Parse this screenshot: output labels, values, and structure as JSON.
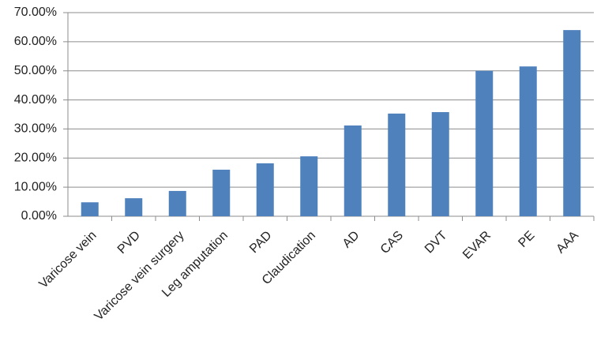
{
  "chart_data": {
    "type": "bar",
    "categories": [
      "Varicose vein",
      "PVD",
      "Varicose vein surgery",
      "Leg amputation",
      "PAD",
      "Claudication",
      "AD",
      "CAS",
      "DVT",
      "EVAR",
      "PE",
      "AAA"
    ],
    "values": [
      4.8,
      6.2,
      8.7,
      16.0,
      18.2,
      20.6,
      31.2,
      35.3,
      35.8,
      50.0,
      51.5,
      64.0
    ],
    "color": "#4f81bd",
    "ylim": [
      0,
      70
    ],
    "yticks": [
      {
        "value": 0,
        "label": "0.00%"
      },
      {
        "value": 10,
        "label": "10.00%"
      },
      {
        "value": 20,
        "label": "20.00%"
      },
      {
        "value": 30,
        "label": "30.00%"
      },
      {
        "value": 40,
        "label": "40.00%"
      },
      {
        "value": 50,
        "label": "50.00%"
      },
      {
        "value": 60,
        "label": "60.00%"
      },
      {
        "value": 70,
        "label": "70.00%"
      }
    ],
    "grid": true
  }
}
